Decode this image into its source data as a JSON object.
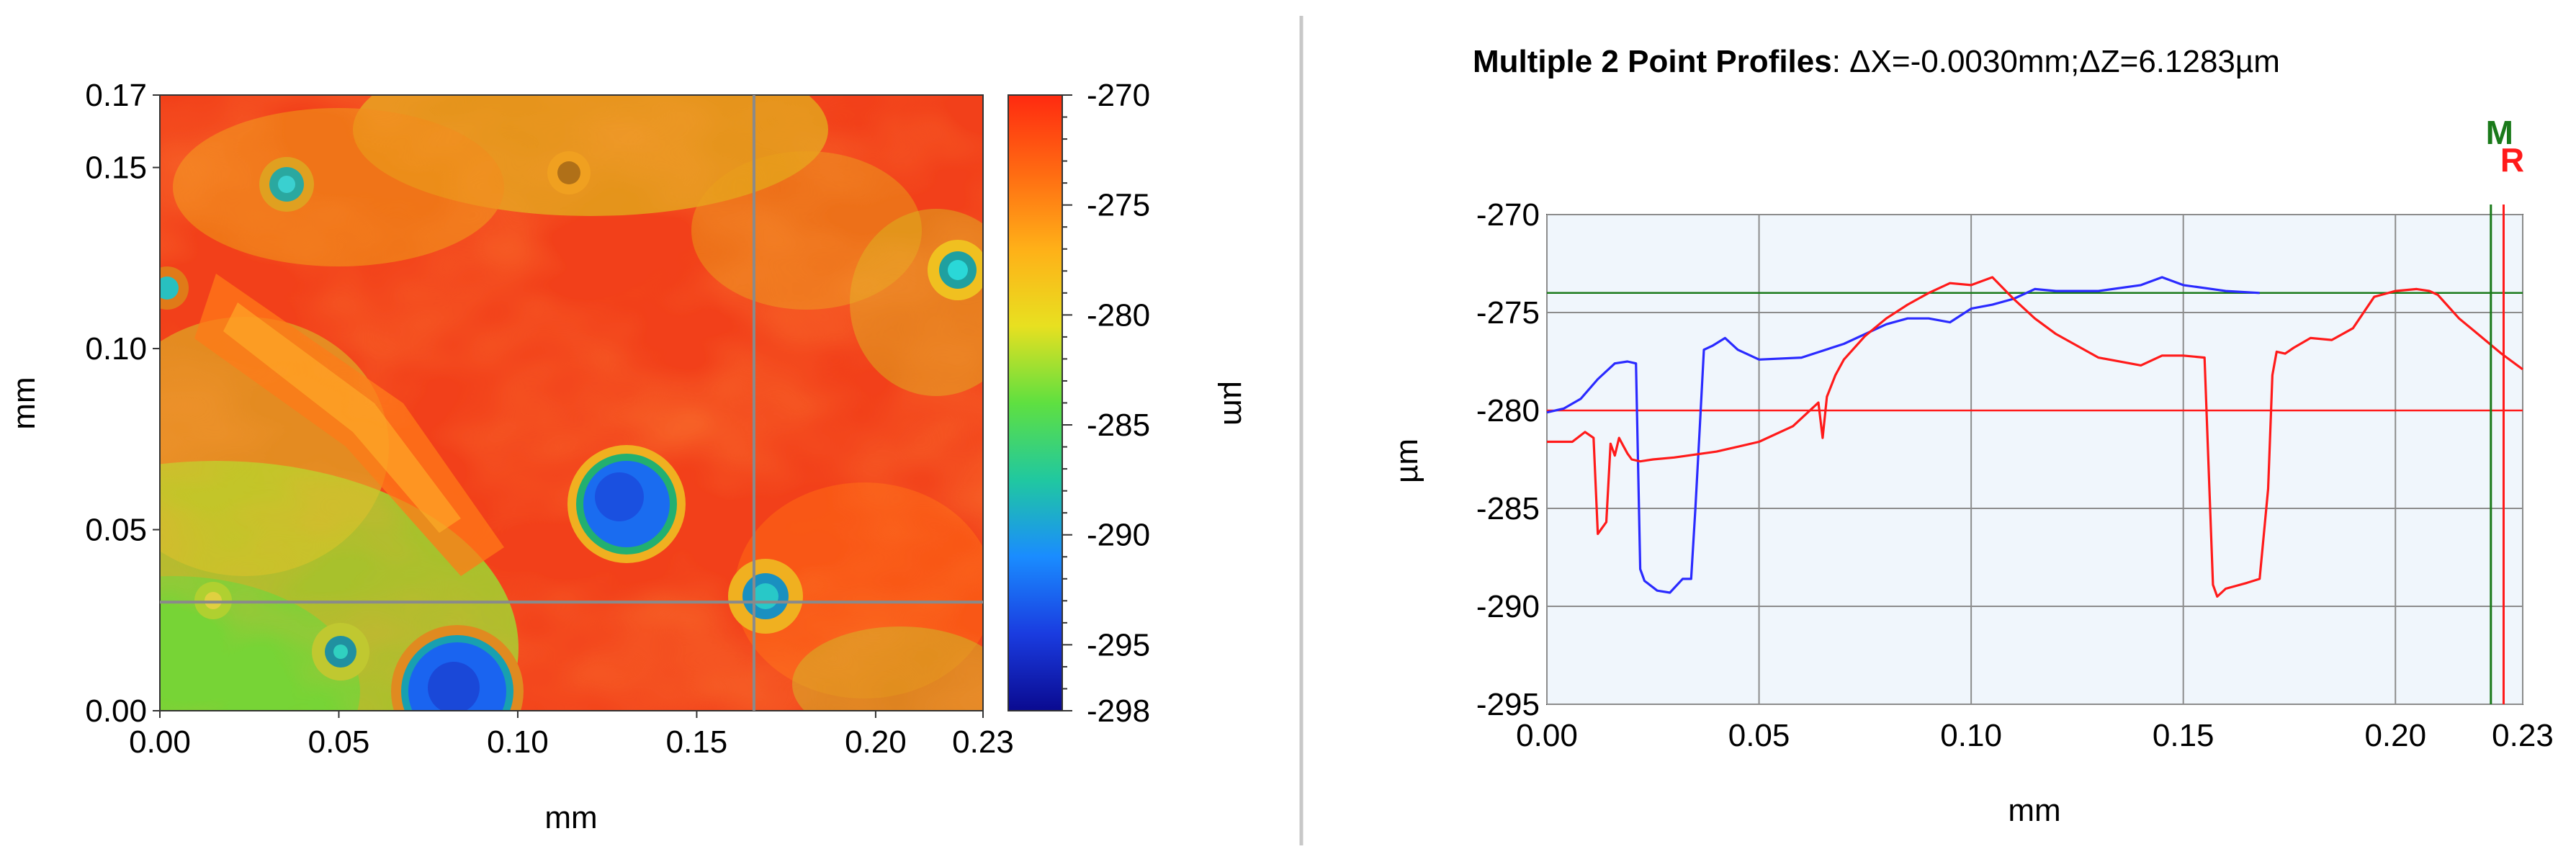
{
  "left_panel": {
    "x_unit": "mm",
    "y_unit": "mm",
    "colorbar_unit": "µm",
    "x_ticks": [
      "0.00",
      "0.05",
      "0.10",
      "0.15",
      "0.20",
      "0.23"
    ],
    "y_ticks": [
      "0.00",
      "0.05",
      "0.10",
      "0.15",
      "0.17"
    ],
    "colorbar_ticks": [
      "-270",
      "-275",
      "-280",
      "-285",
      "-290",
      "-295",
      "-298"
    ],
    "colormap": [
      "#ff2a10",
      "#ff6a12",
      "#ffb018",
      "#e8e020",
      "#5fe040",
      "#20c8a0",
      "#1a8cff",
      "#1a3ce0",
      "#0a0a90"
    ],
    "crosshair_x": 0.166,
    "crosshair_y": 0.03,
    "xlim": [
      0,
      0.23
    ],
    "ylim": [
      0,
      0.17
    ],
    "zlim": [
      -298,
      -270
    ]
  },
  "chart_data": {
    "type": "line",
    "title_bold": "Multiple 2 Point Profiles",
    "title_rest": ": ΔX=-0.0030mm;ΔZ=6.1283µm",
    "xlabel": "mm",
    "ylabel": "µm",
    "xlim": [
      0,
      0.23
    ],
    "ylim": [
      -295,
      -270
    ],
    "x_ticks": [
      "0.00",
      "0.05",
      "0.10",
      "0.15",
      "0.20",
      "0.23"
    ],
    "y_ticks": [
      "-270",
      "-275",
      "-280",
      "-285",
      "-290",
      "-295"
    ],
    "grid": true,
    "markers": [
      {
        "label": "M",
        "x": 0.2225,
        "color": "#1a7a1a"
      },
      {
        "label": "R",
        "x": 0.2255,
        "color": "#ff1a1a"
      }
    ],
    "reference_lines": [
      {
        "y": -274.0,
        "color": "#1a7a1a"
      },
      {
        "y": -280.0,
        "color": "#ff1a1a"
      }
    ],
    "series": [
      {
        "color": "#2a2aff",
        "x": [
          0.0,
          0.004,
          0.008,
          0.012,
          0.016,
          0.019,
          0.021,
          0.022,
          0.023,
          0.026,
          0.029,
          0.032,
          0.034,
          0.035,
          0.036,
          0.037,
          0.039,
          0.042,
          0.045,
          0.05,
          0.06,
          0.07,
          0.08,
          0.085,
          0.09,
          0.095,
          0.1,
          0.105,
          0.11,
          0.115,
          0.12,
          0.13,
          0.14,
          0.145,
          0.15,
          0.16,
          0.168
        ],
        "y": [
          -280.1,
          -279.9,
          -279.4,
          -278.4,
          -277.6,
          -277.5,
          -277.6,
          -288.1,
          -288.7,
          -289.2,
          -289.3,
          -288.6,
          -288.6,
          -285.0,
          -281.0,
          -276.9,
          -276.7,
          -276.3,
          -276.9,
          -277.4,
          -277.3,
          -276.6,
          -275.6,
          -275.3,
          -275.3,
          -275.5,
          -274.8,
          -274.6,
          -274.3,
          -273.8,
          -273.9,
          -273.9,
          -273.6,
          -273.2,
          -273.6,
          -273.9,
          -274.0
        ]
      },
      {
        "color": "#ff1a1a",
        "x": [
          0.0,
          0.006,
          0.009,
          0.011,
          0.012,
          0.013,
          0.014,
          0.015,
          0.016,
          0.017,
          0.018,
          0.019,
          0.02,
          0.022,
          0.025,
          0.03,
          0.04,
          0.05,
          0.058,
          0.064,
          0.065,
          0.066,
          0.068,
          0.07,
          0.075,
          0.08,
          0.085,
          0.09,
          0.095,
          0.1,
          0.105,
          0.11,
          0.115,
          0.12,
          0.13,
          0.14,
          0.145,
          0.15,
          0.155,
          0.157,
          0.158,
          0.159,
          0.16,
          0.165,
          0.168,
          0.17,
          0.171,
          0.172,
          0.174,
          0.176,
          0.18,
          0.185,
          0.19,
          0.195,
          0.2,
          0.205,
          0.208,
          0.21,
          0.215,
          0.22,
          0.225,
          0.23
        ],
        "y": [
          -281.6,
          -281.6,
          -281.1,
          -281.4,
          -286.3,
          -286.0,
          -285.7,
          -281.7,
          -282.3,
          -281.4,
          -281.8,
          -282.2,
          -282.5,
          -282.6,
          -282.5,
          -282.4,
          -282.1,
          -281.6,
          -280.8,
          -279.6,
          -281.4,
          -279.3,
          -278.2,
          -277.4,
          -276.2,
          -275.3,
          -274.6,
          -274.0,
          -273.5,
          -273.6,
          -273.2,
          -274.3,
          -275.3,
          -276.1,
          -277.3,
          -277.7,
          -277.2,
          -277.2,
          -277.3,
          -288.9,
          -289.5,
          -289.3,
          -289.1,
          -288.8,
          -288.6,
          -284.0,
          -278.2,
          -277.0,
          -277.1,
          -276.8,
          -276.3,
          -276.4,
          -275.8,
          -274.2,
          -273.9,
          -273.8,
          -273.9,
          -274.1,
          -275.3,
          -276.2,
          -277.1,
          -277.9
        ]
      }
    ]
  }
}
